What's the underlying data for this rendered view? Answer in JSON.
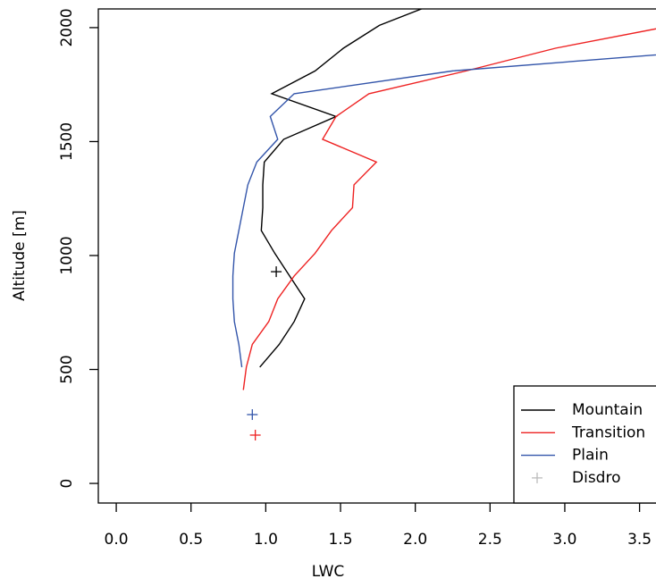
{
  "chart_data": {
    "type": "line",
    "x_label": "LWC",
    "y_label": "Altitude [m]",
    "xlim": [
      -0.12,
      3.61
    ],
    "ylim": [
      -86,
      2082
    ],
    "xticks": [
      {
        "value": 0,
        "label": "0.0"
      },
      {
        "value": 0.5,
        "label": "0.5"
      },
      {
        "value": 1,
        "label": "1.0"
      },
      {
        "value": 1.5,
        "label": "1.5"
      },
      {
        "value": 2,
        "label": "2.0"
      },
      {
        "value": 2.5,
        "label": "2.5"
      },
      {
        "value": 3,
        "label": "3.0"
      },
      {
        "value": 3.5,
        "label": "3.5"
      }
    ],
    "yticks": [
      0,
      500,
      1000,
      1500,
      2000
    ],
    "legend": "bottom-right",
    "series": [
      {
        "name": "Mountain",
        "color": "#000000",
        "x": [
          0.96,
          1.09,
          1.19,
          1.26,
          1.16,
          1.06,
          0.97,
          0.98,
          0.98,
          0.99,
          1.12,
          1.47,
          1.04,
          1.33,
          1.52,
          1.76,
          2.15
        ],
        "values": [
          510,
          610,
          710,
          810,
          910,
          1010,
          1110,
          1210,
          1310,
          1410,
          1510,
          1610,
          1710,
          1810,
          1910,
          2010,
          2110
        ]
      },
      {
        "name": "Transition",
        "color": "#ee2222",
        "x": [
          0.85,
          0.87,
          0.91,
          1.02,
          1.08,
          1.19,
          1.33,
          1.44,
          1.58,
          1.59,
          1.74,
          1.38,
          1.47,
          1.69,
          2.34,
          2.94,
          3.73
        ],
        "values": [
          410,
          510,
          610,
          710,
          810,
          910,
          1010,
          1110,
          1210,
          1310,
          1410,
          1510,
          1610,
          1710,
          1810,
          1910,
          2010
        ]
      },
      {
        "name": "Plain",
        "color": "#3355aa",
        "x": [
          0.84,
          0.82,
          0.79,
          0.78,
          0.78,
          0.79,
          0.82,
          0.85,
          0.88,
          0.94,
          1.08,
          1.03,
          1.19,
          2.25,
          4.18
        ],
        "values": [
          510,
          610,
          710,
          810,
          910,
          1010,
          1110,
          1210,
          1310,
          1410,
          1510,
          1610,
          1710,
          1810,
          1910
        ]
      },
      {
        "name": "Disdro",
        "color": "#bbbbbb",
        "marker": "+",
        "x": [
          1.07,
          0.91,
          0.93
        ],
        "values": [
          929,
          302,
          212
        ],
        "point_colors": [
          "#000000",
          "#3355aa",
          "#ee2222"
        ]
      }
    ]
  }
}
